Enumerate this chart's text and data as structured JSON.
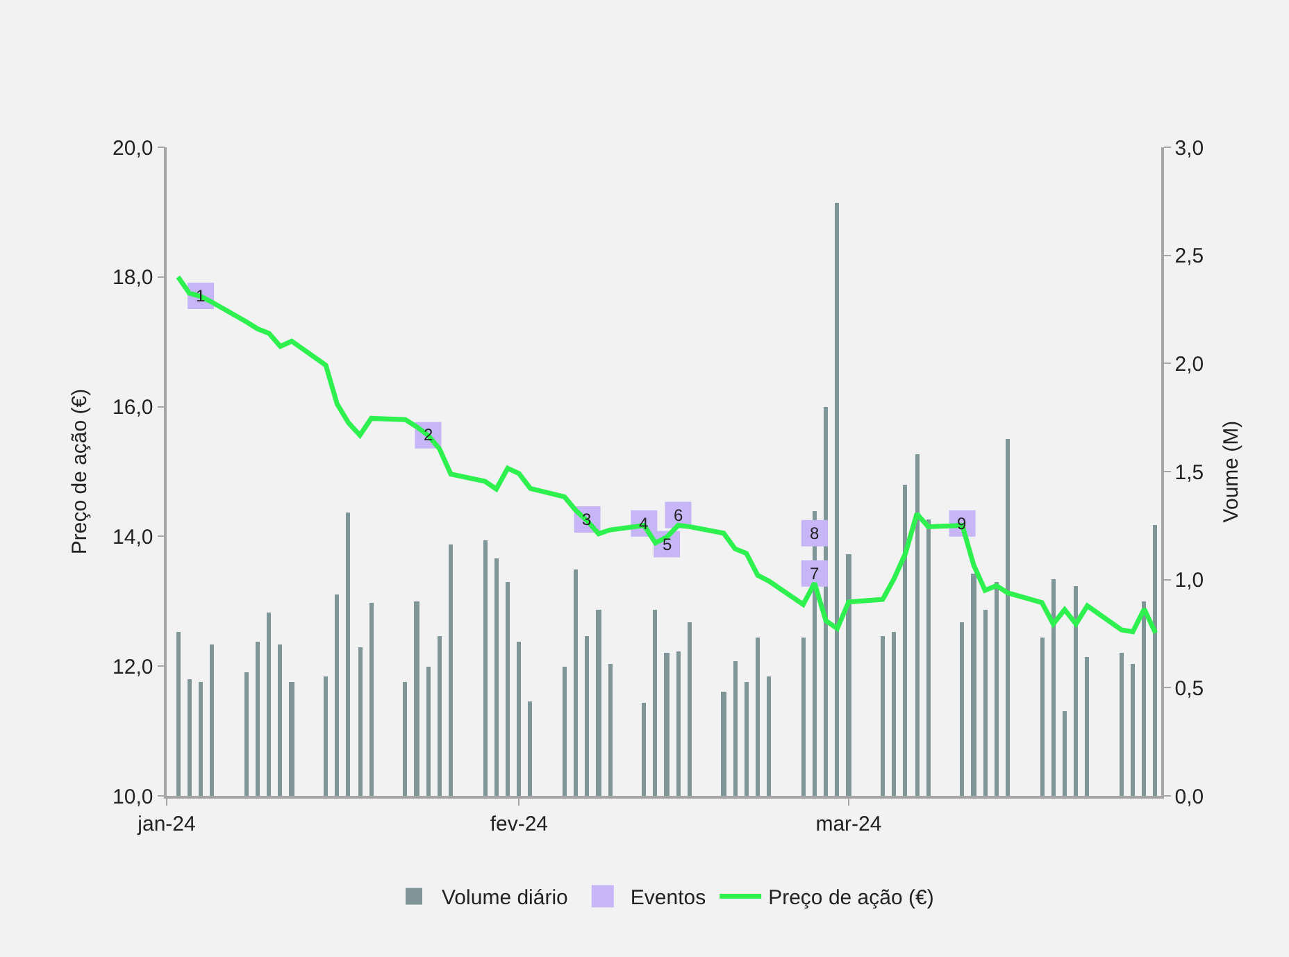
{
  "chart_data": {
    "type": "bar",
    "x": [
      "2024-01-02",
      "2024-01-03",
      "2024-01-04",
      "2024-01-05",
      "2024-01-08",
      "2024-01-09",
      "2024-01-10",
      "2024-01-11",
      "2024-01-12",
      "2024-01-15",
      "2024-01-16",
      "2024-01-17",
      "2024-01-18",
      "2024-01-19",
      "2024-01-22",
      "2024-01-23",
      "2024-01-24",
      "2024-01-25",
      "2024-01-26",
      "2024-01-29",
      "2024-01-30",
      "2024-01-31",
      "2024-02-01",
      "2024-02-02",
      "2024-02-05",
      "2024-02-06",
      "2024-02-07",
      "2024-02-08",
      "2024-02-09",
      "2024-02-12",
      "2024-02-13",
      "2024-02-14",
      "2024-02-15",
      "2024-02-16",
      "2024-02-19",
      "2024-02-20",
      "2024-02-21",
      "2024-02-22",
      "2024-02-23",
      "2024-02-26",
      "2024-02-27",
      "2024-02-28",
      "2024-02-29",
      "2024-03-01",
      "2024-03-04",
      "2024-03-05",
      "2024-03-06",
      "2024-03-07",
      "2024-03-08",
      "2024-03-11",
      "2024-03-12",
      "2024-03-13",
      "2024-03-14",
      "2024-03-15",
      "2024-03-18",
      "2024-03-19",
      "2024-03-20",
      "2024-03-21",
      "2024-03-22",
      "2024-03-25",
      "2024-03-26",
      "2024-03-27",
      "2024-03-28"
    ],
    "series": [
      {
        "name": "Volume diário",
        "axis": "y2",
        "color": "#7f9598",
        "values": [
          0.76,
          0.54,
          0.53,
          0.7,
          0.57,
          0.71,
          0.85,
          0.7,
          0.53,
          0.55,
          0.93,
          1.31,
          0.69,
          0.89,
          0.53,
          0.9,
          0.6,
          0.74,
          1.16,
          1.18,
          1.1,
          0.99,
          0.71,
          0.44,
          0.6,
          1.05,
          0.74,
          0.86,
          0.61,
          0.43,
          0.86,
          0.66,
          0.67,
          0.8,
          0.48,
          0.62,
          0.53,
          0.73,
          0.55,
          0.73,
          1.32,
          1.8,
          2.74,
          1.12,
          0.74,
          0.76,
          1.44,
          1.58,
          1.28,
          0.8,
          1.03,
          0.86,
          0.99,
          1.65,
          0.73,
          1.0,
          0.39,
          0.97,
          0.64,
          0.66,
          0.61,
          0.9,
          1.25
        ]
      },
      {
        "name": "Preço de ação (€)",
        "type": "line",
        "color": "#2ef04f",
        "values": [
          18.0,
          17.75,
          17.7,
          17.61,
          17.31,
          17.2,
          17.13,
          16.93,
          17.01,
          16.64,
          16.04,
          15.75,
          15.56,
          15.82,
          15.8,
          15.69,
          15.56,
          15.35,
          14.96,
          14.85,
          14.73,
          15.05,
          14.97,
          14.74,
          14.61,
          14.4,
          14.24,
          14.04,
          14.1,
          14.17,
          13.9,
          13.99,
          14.17,
          14.15,
          14.05,
          13.81,
          13.74,
          13.4,
          13.31,
          12.95,
          13.28,
          12.7,
          12.58,
          12.99,
          13.03,
          13.35,
          13.74,
          14.35,
          14.15,
          14.17,
          13.56,
          13.17,
          13.24,
          13.13,
          12.98,
          12.65,
          12.87,
          12.65,
          12.93,
          12.56,
          12.53,
          12.88,
          12.51
        ]
      },
      {
        "name": "Eventos",
        "type": "scatter",
        "marker": "square",
        "color": "#c6b6f8",
        "x": [
          "2024-01-04",
          "2024-01-24",
          "2024-02-07",
          "2024-02-12",
          "2024-02-14",
          "2024-02-15",
          "2024-02-27",
          "2024-02-27",
          "2024-03-11"
        ],
        "values": [
          17.71,
          15.56,
          14.26,
          14.2,
          13.88,
          14.33,
          13.43,
          14.05,
          14.2
        ]
      }
    ],
    "annotations": [
      {
        "text": "1",
        "x": "2024-01-04",
        "y": 17.71
      },
      {
        "text": "2",
        "x": "2024-01-24",
        "y": 15.56
      },
      {
        "text": "3",
        "x": "2024-02-07",
        "y": 14.26
      },
      {
        "text": "4",
        "x": "2024-02-12",
        "y": 14.2
      },
      {
        "text": "5",
        "x": "2024-02-14",
        "y": 13.88
      },
      {
        "text": "6",
        "x": "2024-02-15",
        "y": 14.33
      },
      {
        "text": "7",
        "x": "2024-02-27",
        "y": 13.43
      },
      {
        "text": "8",
        "x": "2024-02-27",
        "y": 14.05
      },
      {
        "text": "9",
        "x": "2024-03-11",
        "y": 14.2
      }
    ],
    "ylabel": "Preço de ação (€)",
    "y2label": "Voume (M)",
    "xlim": [
      "2024-01-01",
      "2024-03-28T12:00"
    ],
    "xticks": [
      {
        "value": "2024-01-01",
        "label": "jan-24"
      },
      {
        "value": "2024-02-01",
        "label": "fev-24"
      },
      {
        "value": "2024-03-01",
        "label": "mar-24"
      }
    ],
    "ylim": [
      10,
      20
    ],
    "yticks": [
      {
        "value": 10,
        "label": "10,0"
      },
      {
        "value": 12,
        "label": "12,0"
      },
      {
        "value": 14,
        "label": "14,0"
      },
      {
        "value": 16,
        "label": "16,0"
      },
      {
        "value": 18,
        "label": "18,0"
      },
      {
        "value": 20,
        "label": "20,0"
      }
    ],
    "y2lim": [
      0,
      3
    ],
    "y2ticks": [
      {
        "value": 0,
        "label": "0,0"
      },
      {
        "value": 0.5,
        "label": "0,5"
      },
      {
        "value": 1,
        "label": "1,0"
      },
      {
        "value": 1.5,
        "label": "1,5"
      },
      {
        "value": 2,
        "label": "2,0"
      },
      {
        "value": 2.5,
        "label": "2,5"
      },
      {
        "value": 3,
        "label": "3,0"
      }
    ],
    "grid": false,
    "legend": "bottom"
  }
}
